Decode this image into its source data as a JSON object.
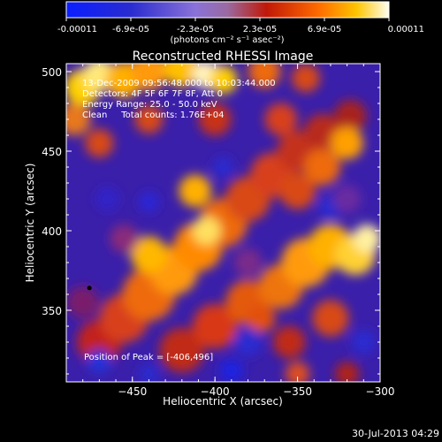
{
  "chart_data": {
    "type": "heatmap",
    "title": "Reconstructed RHESSI Image",
    "xlabel": "Heliocentric X (arcsec)",
    "ylabel": "Heliocentric Y (arcsec)",
    "xlim": [
      -490,
      -300
    ],
    "ylim": [
      305,
      505
    ],
    "x_ticks": [
      -450,
      -400,
      -350,
      -300
    ],
    "x_tick_labels": [
      "−450",
      "−400",
      "−350",
      "−300"
    ],
    "y_ticks": [
      350,
      400,
      450,
      500
    ],
    "y_tick_labels": [
      "350",
      "400",
      "450",
      "500"
    ],
    "colorbar": {
      "tick_labels": [
        "-0.00011",
        "-6.9e-05",
        "-2.3e-05",
        "2.3e-05",
        "6.9e-05",
        "0.00011"
      ],
      "range": [
        -0.00011,
        0.00011
      ],
      "units_label": "(photons cm⁻² s⁻¹ asec⁻²)"
    },
    "annotations": [
      "13-Dec-2009 09:56:48.000 to 10:03:44.000",
      "Detectors: 4F 5F 6F 7F 8F, Att 0",
      "Energy Range: 25.0 - 50.0 keV",
      "Clean     Total counts: 1.76E+04"
    ],
    "peak_label": "Position of Peak = [-406,496]",
    "peak": [
      -406,
      496
    ],
    "marker": [
      -476,
      364
    ],
    "grid": false
  },
  "timestamp": "30-Jul-2013 04:29"
}
